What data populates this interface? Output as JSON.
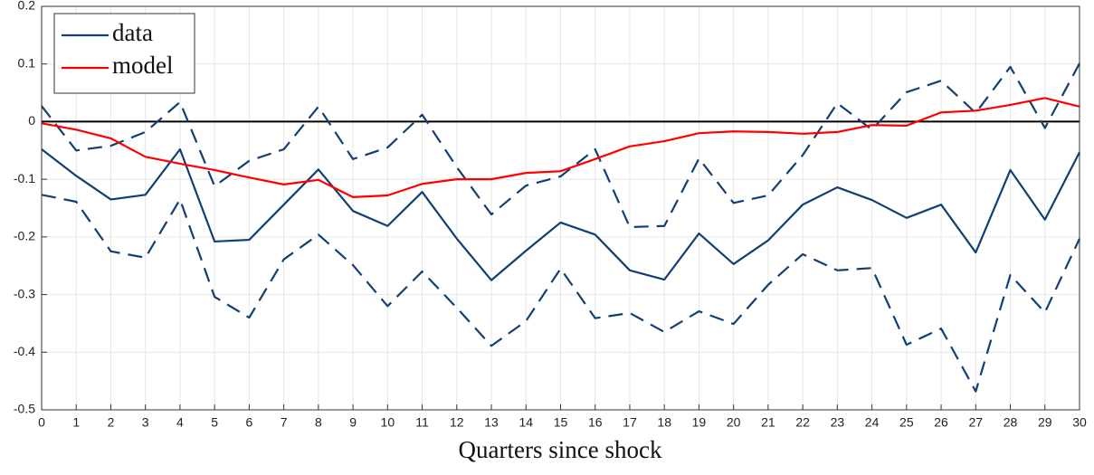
{
  "chart_data": {
    "type": "line",
    "x_label": "Quarters since shock",
    "x": [
      0,
      1,
      2,
      3,
      4,
      5,
      6,
      7,
      8,
      9,
      10,
      11,
      12,
      13,
      14,
      15,
      16,
      17,
      18,
      19,
      20,
      21,
      22,
      23,
      24,
      25,
      26,
      27,
      28,
      29,
      30
    ],
    "series": [
      {
        "name": "data",
        "color": "#123f73",
        "values": [
          -0.048,
          -0.094,
          -0.135,
          -0.127,
          -0.048,
          -0.208,
          -0.205,
          -0.144,
          -0.083,
          -0.155,
          -0.181,
          -0.122,
          -0.203,
          -0.275,
          -0.224,
          -0.175,
          -0.196,
          -0.258,
          -0.274,
          -0.194,
          -0.247,
          -0.206,
          -0.144,
          -0.114,
          -0.136,
          -0.167,
          -0.144,
          -0.227,
          -0.084,
          -0.17,
          -0.053
        ]
      },
      {
        "color": "#123f73",
        "dashed": true,
        "values": [
          0.027,
          -0.05,
          -0.042,
          -0.018,
          0.034,
          -0.112,
          -0.068,
          -0.048,
          0.026,
          -0.065,
          -0.045,
          0.012,
          -0.079,
          -0.161,
          -0.111,
          -0.095,
          -0.048,
          -0.183,
          -0.181,
          -0.064,
          -0.141,
          -0.128,
          -0.058,
          0.032,
          -0.014,
          0.051,
          0.071,
          0.015,
          0.095,
          -0.011,
          0.101
        ]
      },
      {
        "color": "#123f73",
        "dashed": true,
        "values": [
          -0.127,
          -0.139,
          -0.225,
          -0.236,
          -0.135,
          -0.304,
          -0.34,
          -0.239,
          -0.196,
          -0.249,
          -0.32,
          -0.26,
          -0.323,
          -0.389,
          -0.346,
          -0.255,
          -0.341,
          -0.332,
          -0.365,
          -0.329,
          -0.351,
          -0.283,
          -0.23,
          -0.258,
          -0.254,
          -0.387,
          -0.359,
          -0.468,
          -0.266,
          -0.331,
          -0.203
        ]
      },
      {
        "name": "model",
        "color": "#ff0000",
        "values": [
          -0.003,
          -0.014,
          -0.029,
          -0.061,
          -0.073,
          -0.084,
          -0.097,
          -0.109,
          -0.101,
          -0.131,
          -0.128,
          -0.108,
          -0.1,
          -0.1,
          -0.089,
          -0.086,
          -0.065,
          -0.043,
          -0.034,
          -0.02,
          -0.017,
          -0.018,
          -0.021,
          -0.018,
          -0.006,
          -0.007,
          0.016,
          0.019,
          0.029,
          0.041,
          0.026
        ]
      }
    ],
    "xlim": [
      0,
      30
    ],
    "xticks": [
      0,
      1,
      2,
      3,
      4,
      5,
      6,
      7,
      8,
      9,
      10,
      11,
      12,
      13,
      14,
      15,
      16,
      17,
      18,
      19,
      20,
      21,
      22,
      23,
      24,
      25,
      26,
      27,
      28,
      29,
      30
    ],
    "ylim": [
      -0.5,
      0.2
    ],
    "yticks": [
      -0.5,
      -0.4,
      -0.3,
      -0.2,
      -0.1,
      0,
      0.1,
      0.2
    ],
    "grid": true,
    "zero_line": true,
    "legend": "top-left"
  }
}
